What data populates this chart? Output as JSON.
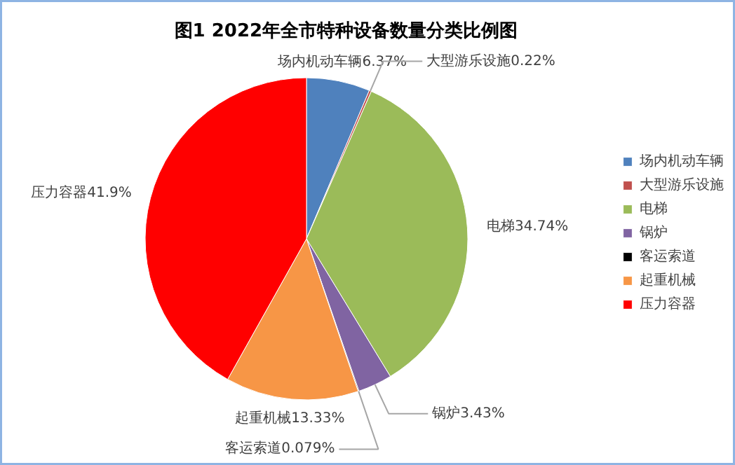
{
  "chart_data": {
    "type": "pie",
    "title": "图1        2022年全市特种设备数量分类比例图",
    "categories": [
      "场内机动车辆",
      "大型游乐设施",
      "电梯",
      "锅炉",
      "客运索道",
      "起重机械",
      "压力容器"
    ],
    "values": [
      6.37,
      0.22,
      34.74,
      3.43,
      0.079,
      13.33,
      41.9
    ],
    "colors": [
      "#4f81bd",
      "#c0504d",
      "#9bbb59",
      "#8064a2",
      "#000000",
      "#f79646",
      "#ff0000"
    ],
    "value_labels": [
      "场内机动车辆6.37%",
      "大型游乐设施0.22%",
      "电梯34.74%",
      "锅炉3.43%",
      "客运索道0.079%",
      "起重机械13.33%",
      "压力容器41.9%"
    ],
    "legend": "right"
  }
}
